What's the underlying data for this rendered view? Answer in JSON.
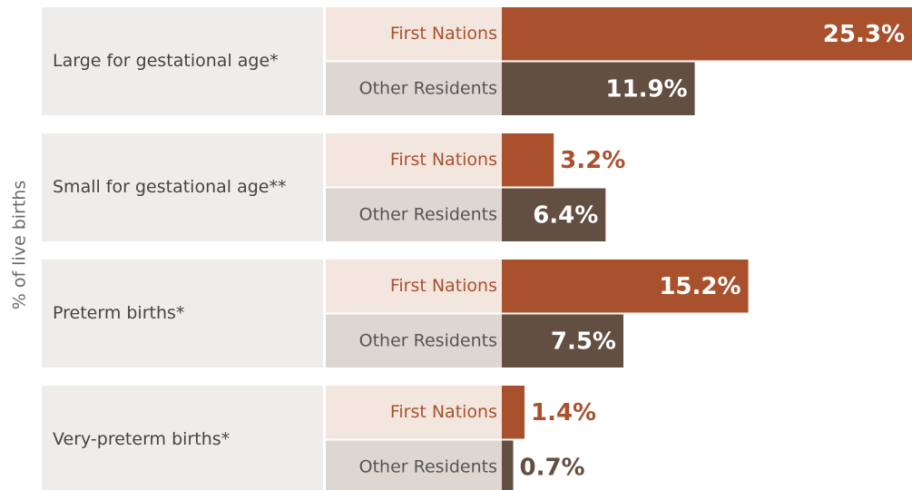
{
  "chart_data": {
    "type": "bar",
    "orientation": "horizontal",
    "axis_label": "% of live births",
    "categories": [
      "Large for gestational age*",
      "Small for gestational age**",
      "Preterm births*",
      "Very-preterm births*"
    ],
    "series": [
      {
        "name": "First Nations",
        "color": "#a9512d",
        "label_bg": "#f3e6de",
        "values": [
          25.3,
          3.2,
          15.2,
          1.4
        ],
        "value_labels": [
          "25.3%",
          "3.2%",
          "15.2%",
          "1.4%"
        ]
      },
      {
        "name": "Other Residents",
        "color": "#634e42",
        "label_bg": "#ddd6d1",
        "values": [
          11.9,
          6.4,
          7.5,
          0.7
        ],
        "value_labels": [
          "11.9%",
          "6.4%",
          "7.5%",
          "0.7%"
        ]
      }
    ],
    "xlim": [
      0,
      25.3
    ]
  }
}
